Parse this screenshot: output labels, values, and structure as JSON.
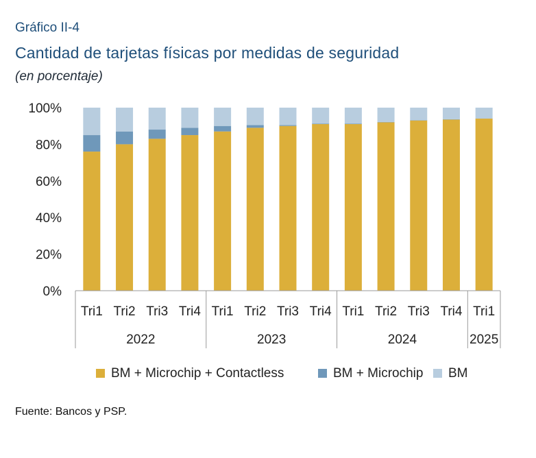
{
  "header": {
    "label": "Gráfico II-4",
    "title": "Cantidad de tarjetas físicas por medidas de seguridad",
    "subtitle": "(en porcentaje)"
  },
  "footer": {
    "source": "Fuente: Bancos y PSP."
  },
  "chart_data": {
    "type": "bar",
    "stacked": true,
    "categories": [
      "Tri1",
      "Tri2",
      "Tri3",
      "Tri4",
      "Tri1",
      "Tri2",
      "Tri3",
      "Tri4",
      "Tri1",
      "Tri2",
      "Tri3",
      "Tri4",
      "Tri1"
    ],
    "groups": [
      {
        "label": "2022",
        "count": 4
      },
      {
        "label": "2023",
        "count": 4
      },
      {
        "label": "2024",
        "count": 4
      },
      {
        "label": "2025",
        "count": 1
      }
    ],
    "series": [
      {
        "name": "BM + Microchip + Contactless",
        "color": "#dcaf3a",
        "values": [
          76,
          80,
          83,
          85,
          87,
          89,
          90,
          91,
          91,
          92,
          93,
          93.5,
          94
        ]
      },
      {
        "name": "BM + Microchip",
        "color": "#6f98ba",
        "values": [
          9,
          7,
          5,
          4,
          3,
          1.5,
          0.5,
          0.3,
          0.3,
          0.2,
          0.2,
          0.2,
          0.1
        ]
      },
      {
        "name": "BM",
        "color": "#b8cddf",
        "values": [
          15,
          13,
          12,
          11,
          10,
          9.5,
          9.5,
          8.7,
          8.7,
          7.8,
          6.8,
          6.3,
          5.9
        ]
      }
    ],
    "yticks": [
      "0%",
      "20%",
      "40%",
      "60%",
      "80%",
      "100%"
    ],
    "ylim": [
      0,
      100
    ],
    "grid": false,
    "legend": "bottom"
  }
}
